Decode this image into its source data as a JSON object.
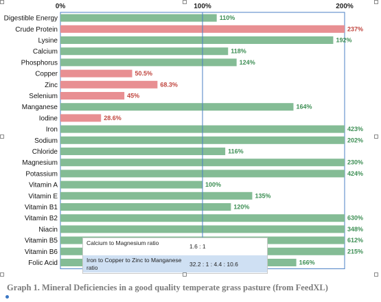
{
  "chart_data": {
    "type": "bar",
    "orientation": "horizontal",
    "scale_labels": [
      "0%",
      "100%",
      "200%"
    ],
    "xlim": [
      0,
      200
    ],
    "reference_line": 100,
    "colors": {
      "adequate": "#84bc95",
      "deficient": "#e88f92",
      "adequate_text": "#3e8f55",
      "deficient_text": "#c0463f",
      "frame": "#4a7fc4"
    },
    "categories": [
      "Digestible Energy",
      "Crude Protein",
      "Lysine",
      "Calcium",
      "Phosphorus",
      "Copper",
      "Zinc",
      "Selenium",
      "Manganese",
      "Iodine",
      "Iron",
      "Sodium",
      "Chloride",
      "Magnesium",
      "Potassium",
      "Vitamin A",
      "Vitamin E",
      "Vitamin B1",
      "Vitamin B2",
      "Niacin",
      "Vitamin B5",
      "Vitamin B6",
      "Folic Acid"
    ],
    "values": [
      110,
      237,
      192,
      118,
      124,
      50.5,
      68.3,
      45,
      164,
      28.6,
      423,
      202,
      116,
      230,
      424,
      100,
      135,
      120,
      630,
      348,
      612,
      215,
      166
    ],
    "value_labels": [
      "110%",
      "237%",
      "192%",
      "118%",
      "124%",
      "50.5%",
      "68.3%",
      "45%",
      "164%",
      "28.6%",
      "423%",
      "202%",
      "116%",
      "230%",
      "424%",
      "100%",
      "135%",
      "120%",
      "630%",
      "348%",
      "612%",
      "215%",
      "166%"
    ],
    "status": [
      "adequate",
      "deficient",
      "adequate",
      "adequate",
      "adequate",
      "deficient",
      "deficient",
      "deficient",
      "adequate",
      "deficient",
      "adequate",
      "adequate",
      "adequate",
      "adequate",
      "adequate",
      "adequate",
      "adequate",
      "adequate",
      "adequate",
      "adequate",
      "adequate",
      "adequate",
      "adequate"
    ]
  },
  "ratios": [
    {
      "label": "Calcium to Magnesium ratio",
      "value": "1.6 : 1"
    },
    {
      "label": "Iron to Copper to Zinc to Manganese ratio",
      "value": "32.2 : 1 : 4.4 : 10.6"
    }
  ],
  "caption": "Graph 1. Mineral Deficiencies in a good quality temperate grass pasture (from FeedXL)"
}
